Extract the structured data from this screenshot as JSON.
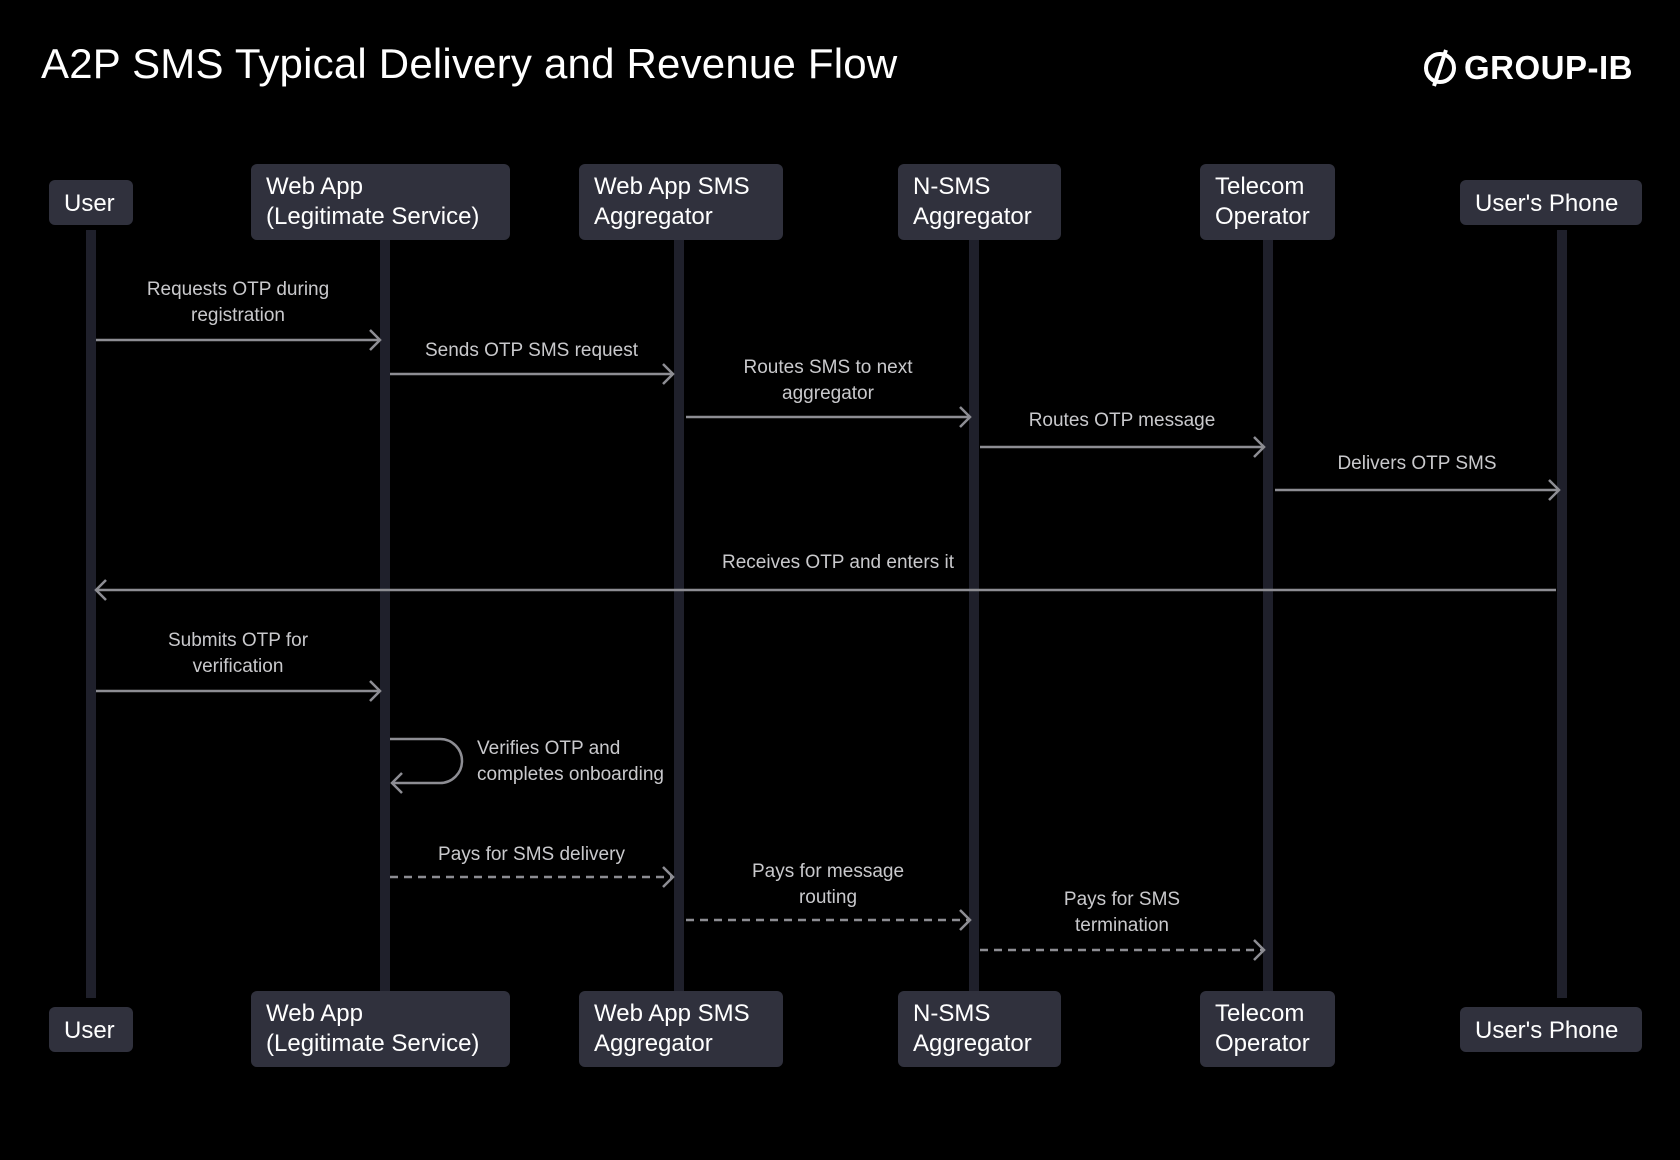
{
  "header": {
    "title": "A2P SMS Typical Delivery and Revenue Flow",
    "logo_text": "GROUP-IB"
  },
  "colors": {
    "background": "#000000",
    "participant_box": "#30313d",
    "lifeline": "#1f202b",
    "arrow": "#8d8d93",
    "label": "#c9c9cc"
  },
  "participants": [
    {
      "line1": "User",
      "line2": ""
    },
    {
      "line1": "Web App",
      "line2": "(Legitimate Service)"
    },
    {
      "line1": "Web App SMS",
      "line2": "Aggregator"
    },
    {
      "line1": "N-SMS",
      "line2": "Aggregator"
    },
    {
      "line1": "Telecom",
      "line2": "Operator"
    },
    {
      "line1": "User's Phone",
      "line2": ""
    }
  ],
  "messages": [
    {
      "from": "User",
      "to": "Web App (Legitimate Service)",
      "style": "solid",
      "line1": "Requests OTP during",
      "line2": "registration"
    },
    {
      "from": "Web App (Legitimate Service)",
      "to": "Web App SMS Aggregator",
      "style": "solid",
      "line1": "Sends OTP SMS request",
      "line2": ""
    },
    {
      "from": "Web App SMS Aggregator",
      "to": "N-SMS Aggregator",
      "style": "solid",
      "line1": "Routes SMS to next",
      "line2": "aggregator"
    },
    {
      "from": "N-SMS Aggregator",
      "to": "Telecom Operator",
      "style": "solid",
      "line1": "Routes OTP message",
      "line2": ""
    },
    {
      "from": "Telecom Operator",
      "to": "User's Phone",
      "style": "solid",
      "line1": "Delivers OTP SMS",
      "line2": ""
    },
    {
      "from": "User's Phone",
      "to": "User",
      "style": "solid",
      "line1": "Receives OTP and enters it",
      "line2": ""
    },
    {
      "from": "User",
      "to": "Web App (Legitimate Service)",
      "style": "solid",
      "line1": "Submits OTP for",
      "line2": "verification"
    },
    {
      "from": "Web App (Legitimate Service)",
      "to": "Web App (Legitimate Service)",
      "style": "self",
      "line1": "Verifies OTP and",
      "line2": "completes onboarding"
    },
    {
      "from": "Web App (Legitimate Service)",
      "to": "Web App SMS Aggregator",
      "style": "dashed",
      "line1": "Pays for SMS delivery",
      "line2": ""
    },
    {
      "from": "Web App SMS Aggregator",
      "to": "N-SMS Aggregator",
      "style": "dashed",
      "line1": "Pays for message",
      "line2": "routing"
    },
    {
      "from": "N-SMS Aggregator",
      "to": "Telecom Operator",
      "style": "dashed",
      "line1": "Pays for SMS",
      "line2": "termination"
    }
  ]
}
